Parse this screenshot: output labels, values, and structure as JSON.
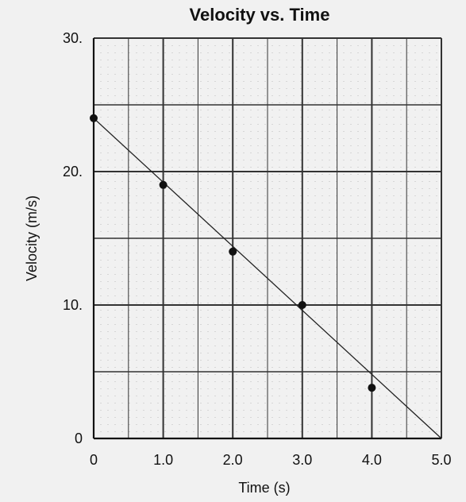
{
  "chart_data": {
    "type": "scatter",
    "title": "Velocity vs. Time",
    "xlabel": "Time (s)",
    "ylabel": "Velocity (m/s)",
    "xlim": [
      0,
      5
    ],
    "ylim": [
      0,
      30
    ],
    "grid": true,
    "x_ticks": [
      {
        "value": 0,
        "label": "0"
      },
      {
        "value": 1,
        "label": "1.0"
      },
      {
        "value": 2,
        "label": "2.0"
      },
      {
        "value": 3,
        "label": "3.0"
      },
      {
        "value": 4,
        "label": "4.0"
      },
      {
        "value": 5,
        "label": "5.0"
      }
    ],
    "y_ticks": [
      {
        "value": 0,
        "label": "0"
      },
      {
        "value": 10,
        "label": "10."
      },
      {
        "value": 20,
        "label": "20."
      },
      {
        "value": 30,
        "label": "30."
      }
    ],
    "y_minor_grid": [
      5,
      15,
      25
    ],
    "x_minor_grid": [
      0.5,
      1.5,
      2.5,
      3.5,
      4.5
    ],
    "points": [
      {
        "x": 0,
        "y": 24
      },
      {
        "x": 1,
        "y": 19
      },
      {
        "x": 2,
        "y": 14
      },
      {
        "x": 3,
        "y": 10
      },
      {
        "x": 4,
        "y": 3.8
      }
    ],
    "fit_line": {
      "x1": 0,
      "y1": 24,
      "x2": 5,
      "y2": 0
    },
    "colors": {
      "grid": "#333333",
      "points": "#111111",
      "line": "#222222",
      "background": "#f1f1f1"
    }
  }
}
